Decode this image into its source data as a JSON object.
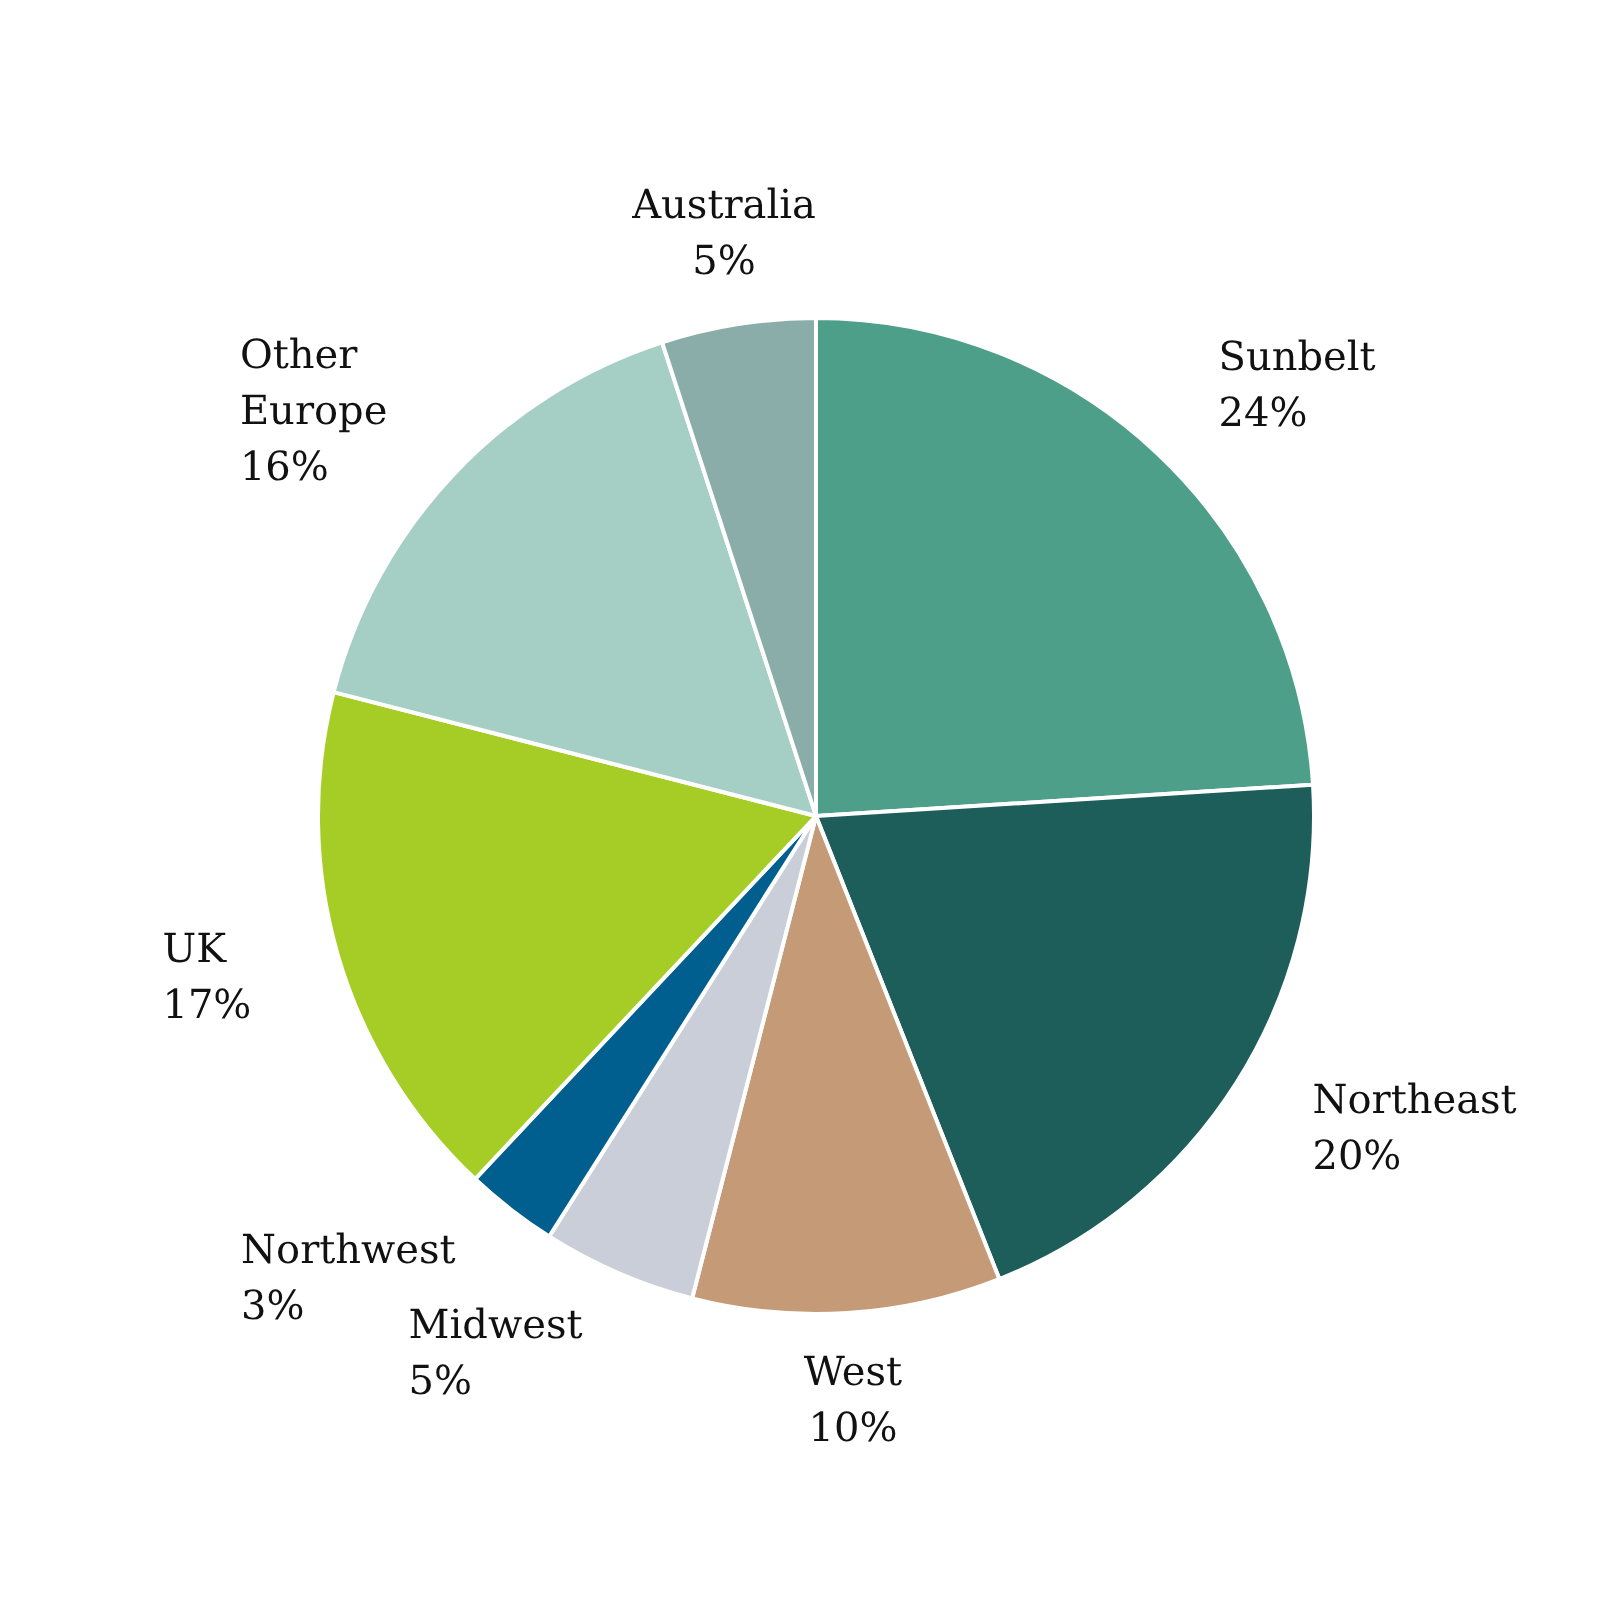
{
  "chart_data": {
    "type": "pie",
    "categories": [
      "Sunbelt",
      "Northeast",
      "West",
      "Midwest",
      "Northwest",
      "UK",
      "Other Europe",
      "Australia"
    ],
    "values": [
      24,
      20,
      10,
      5,
      3,
      17,
      16,
      5
    ],
    "value_labels": [
      "24%",
      "20%",
      "10%",
      "5%",
      "3%",
      "17%",
      "16%",
      "5%"
    ],
    "colors": [
      "#4e9f8a",
      "#1d5e5a",
      "#c49b76",
      "#c9ced8",
      "#005f8f",
      "#a6cd26",
      "#a5cec4",
      "#8badaa"
    ],
    "legend": false
  }
}
